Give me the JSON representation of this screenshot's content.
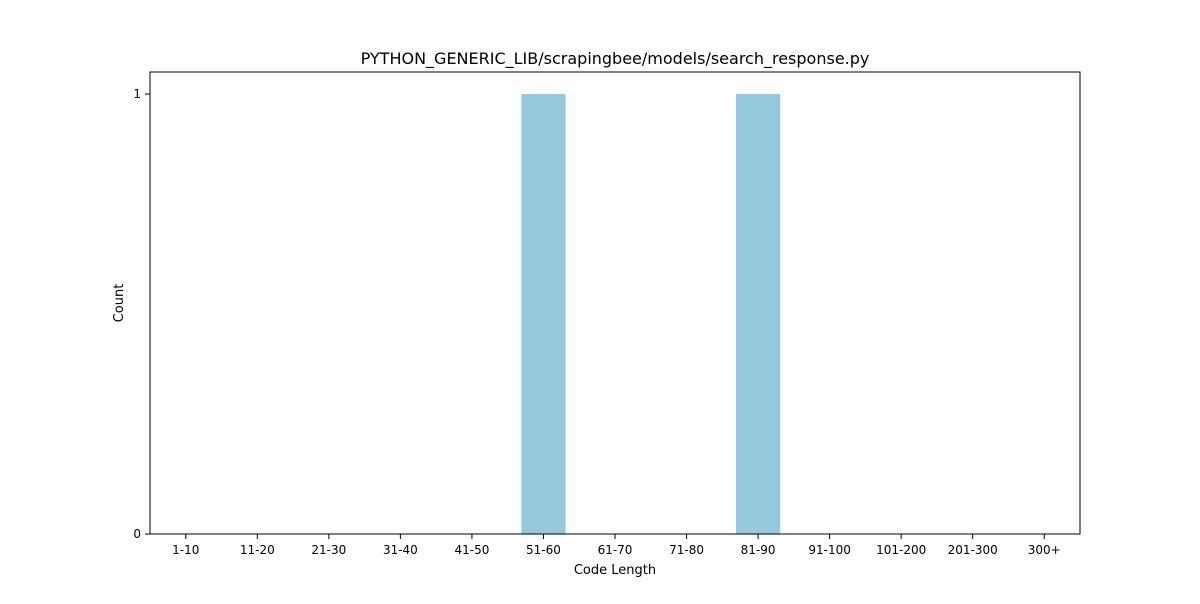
{
  "chart_data": {
    "type": "bar",
    "title": "PYTHON_GENERIC_LIB/scrapingbee/models/search_response.py",
    "xlabel": "Code Length",
    "ylabel": "Count",
    "categories": [
      "1-10",
      "11-20",
      "21-30",
      "31-40",
      "41-50",
      "51-60",
      "61-70",
      "71-80",
      "81-90",
      "91-100",
      "101-200",
      "201-300",
      "300+"
    ],
    "values": [
      0,
      0,
      0,
      0,
      0,
      1,
      0,
      0,
      1,
      0,
      0,
      0,
      0
    ],
    "yticks": [
      0,
      1
    ],
    "ylim": [
      0,
      1.05
    ],
    "grid": false,
    "colors": {
      "bar": "#96c9dd",
      "axis": "#000000",
      "background": "#ffffff"
    }
  }
}
